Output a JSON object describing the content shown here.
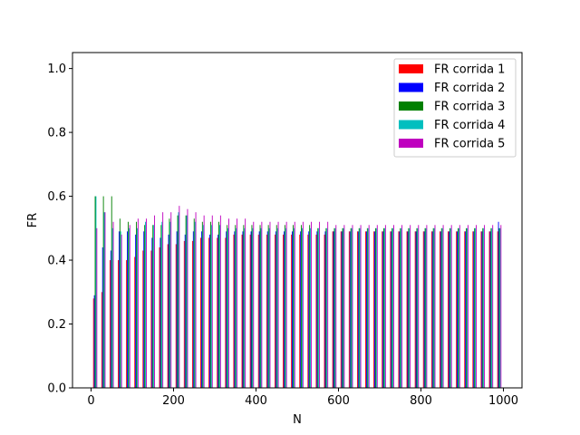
{
  "chart_data": {
    "type": "bar",
    "title": "",
    "xlabel": "N",
    "ylabel": "FR",
    "xlim": [
      -45,
      1045
    ],
    "ylim": [
      0,
      1.05
    ],
    "xticks": [
      0,
      200,
      400,
      600,
      800,
      1000
    ],
    "yticks": [
      0.0,
      0.2,
      0.4,
      0.6,
      0.8,
      1.0
    ],
    "xtick_labels": [
      "0",
      "200",
      "400",
      "600",
      "800",
      "1000"
    ],
    "ytick_labels": [
      "0.0",
      "0.2",
      "0.4",
      "0.6",
      "0.8",
      "1.0"
    ],
    "grid": false,
    "legend_position": "top-right",
    "x": [
      10,
      30,
      50,
      70,
      90,
      110,
      130,
      150,
      170,
      190,
      210,
      230,
      250,
      270,
      290,
      310,
      330,
      350,
      370,
      390,
      410,
      430,
      450,
      470,
      490,
      510,
      530,
      550,
      570,
      590,
      610,
      630,
      650,
      670,
      690,
      710,
      730,
      750,
      770,
      790,
      810,
      830,
      850,
      870,
      890,
      910,
      930,
      950,
      970,
      990
    ],
    "series": [
      {
        "name": "FR corrida 1",
        "color": "#ff0000",
        "offset": -4,
        "values": [
          0.28,
          0.3,
          0.4,
          0.4,
          0.4,
          0.41,
          0.43,
          0.43,
          0.44,
          0.45,
          0.45,
          0.46,
          0.46,
          0.47,
          0.47,
          0.47,
          0.47,
          0.48,
          0.48,
          0.48,
          0.48,
          0.48,
          0.48,
          0.48,
          0.48,
          0.48,
          0.48,
          0.48,
          0.48,
          0.49,
          0.49,
          0.49,
          0.49,
          0.49,
          0.49,
          0.49,
          0.49,
          0.49,
          0.49,
          0.49,
          0.49,
          0.49,
          0.49,
          0.49,
          0.49,
          0.49,
          0.49,
          0.49,
          0.49,
          0.49
        ]
      },
      {
        "name": "FR corrida 2",
        "color": "#0000ff",
        "offset": -2,
        "values": [
          0.29,
          0.44,
          0.43,
          0.49,
          0.49,
          0.48,
          0.49,
          0.47,
          0.47,
          0.48,
          0.49,
          0.48,
          0.49,
          0.49,
          0.48,
          0.48,
          0.49,
          0.49,
          0.49,
          0.49,
          0.49,
          0.49,
          0.49,
          0.49,
          0.49,
          0.49,
          0.49,
          0.49,
          0.49,
          0.49,
          0.49,
          0.49,
          0.49,
          0.49,
          0.49,
          0.49,
          0.49,
          0.49,
          0.49,
          0.49,
          0.49,
          0.49,
          0.49,
          0.49,
          0.49,
          0.49,
          0.49,
          0.49,
          0.49,
          0.52
        ]
      },
      {
        "name": "FR corrida 3",
        "color": "#008000",
        "offset": 0,
        "values": [
          0.6,
          0.6,
          0.6,
          0.53,
          0.52,
          0.52,
          0.51,
          0.51,
          0.51,
          0.53,
          0.54,
          0.54,
          0.53,
          0.52,
          0.52,
          0.52,
          0.51,
          0.51,
          0.51,
          0.51,
          0.51,
          0.51,
          0.51,
          0.51,
          0.51,
          0.51,
          0.51,
          0.5,
          0.5,
          0.5,
          0.5,
          0.5,
          0.5,
          0.5,
          0.5,
          0.5,
          0.5,
          0.5,
          0.5,
          0.5,
          0.5,
          0.5,
          0.5,
          0.5,
          0.5,
          0.5,
          0.5,
          0.5,
          0.5,
          0.5
        ]
      },
      {
        "name": "FR corrida 4",
        "color": "#00bfbf",
        "offset": 2,
        "values": [
          0.6,
          0.55,
          0.5,
          0.49,
          0.5,
          0.5,
          0.52,
          0.51,
          0.52,
          0.52,
          0.55,
          0.54,
          0.52,
          0.51,
          0.51,
          0.51,
          0.5,
          0.5,
          0.5,
          0.5,
          0.5,
          0.5,
          0.5,
          0.5,
          0.5,
          0.5,
          0.5,
          0.5,
          0.5,
          0.5,
          0.5,
          0.5,
          0.5,
          0.5,
          0.5,
          0.5,
          0.5,
          0.5,
          0.5,
          0.5,
          0.5,
          0.5,
          0.5,
          0.5,
          0.5,
          0.5,
          0.5,
          0.5,
          0.5,
          0.5
        ]
      },
      {
        "name": "FR corrida 5",
        "color": "#bf00bf",
        "offset": 4,
        "values": [
          0.5,
          0.55,
          0.52,
          0.48,
          0.51,
          0.53,
          0.53,
          0.54,
          0.55,
          0.55,
          0.57,
          0.56,
          0.55,
          0.54,
          0.54,
          0.54,
          0.53,
          0.53,
          0.53,
          0.52,
          0.52,
          0.52,
          0.52,
          0.52,
          0.52,
          0.52,
          0.52,
          0.52,
          0.52,
          0.51,
          0.51,
          0.51,
          0.51,
          0.51,
          0.51,
          0.51,
          0.51,
          0.51,
          0.51,
          0.51,
          0.51,
          0.51,
          0.51,
          0.51,
          0.51,
          0.51,
          0.51,
          0.51,
          0.51,
          0.51
        ]
      }
    ]
  }
}
